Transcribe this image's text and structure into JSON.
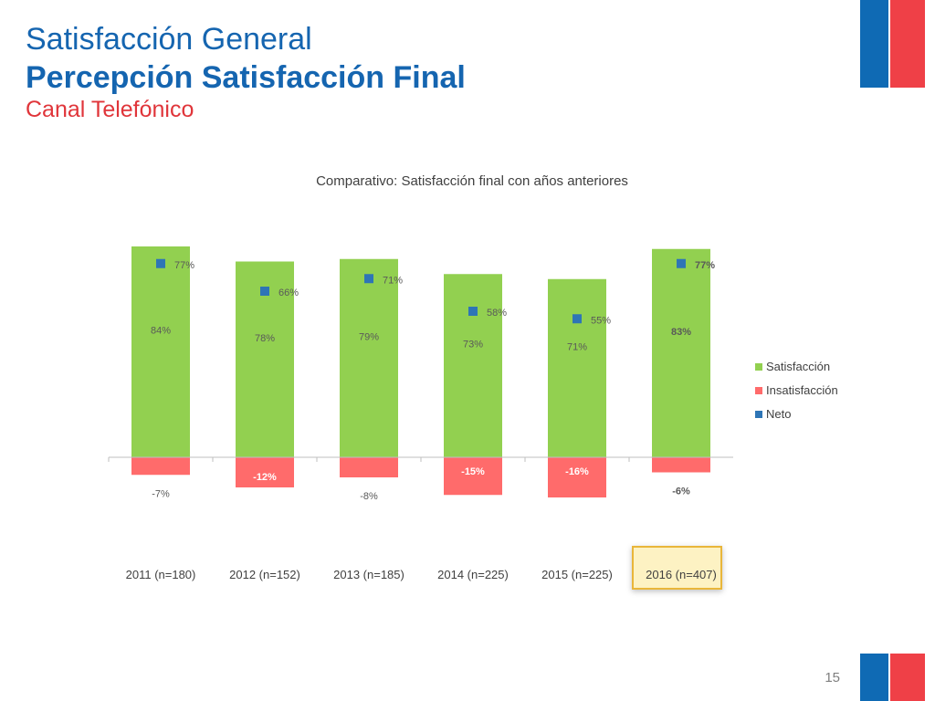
{
  "header": {
    "title": "Satisfacción General",
    "subtitle": "Percepción Satisfacción Final",
    "channel": "Canal Telefónico"
  },
  "page_number": "15",
  "colors": {
    "blue": "#0f6ab4",
    "red": "#ef4047",
    "satisfaccion": "#92d050",
    "insatisfaccion": "#ff6b6b",
    "neto": "#2e75b6"
  },
  "chart_data": {
    "type": "bar",
    "title": "Comparativo: Satisfacción final con años anteriores",
    "categories": [
      "2011 (n=180)",
      "2012 (n=152)",
      "2013 (n=185)",
      "2014 (n=225)",
      "2015 (n=225)",
      "2016 (n=407)"
    ],
    "highlighted_category": "2016 (n=407)",
    "series": [
      {
        "name": "Satisfacción",
        "type": "bar",
        "values": [
          84,
          78,
          79,
          73,
          71,
          83
        ],
        "labels": [
          "84%",
          "78%",
          "79%",
          "73%",
          "71%",
          "83%"
        ]
      },
      {
        "name": "Insatisfacción",
        "type": "bar",
        "values": [
          -7,
          -12,
          -8,
          -15,
          -16,
          -6
        ],
        "labels": [
          "-7%",
          "-12%",
          "-8%",
          "-15%",
          "-16%",
          "-6%"
        ]
      },
      {
        "name": "Neto",
        "type": "marker",
        "values": [
          77,
          66,
          71,
          58,
          55,
          77
        ],
        "labels": [
          "77%",
          "66%",
          "71%",
          "58%",
          "55%",
          "77%"
        ]
      }
    ],
    "legend_position": "right",
    "grid": false
  }
}
